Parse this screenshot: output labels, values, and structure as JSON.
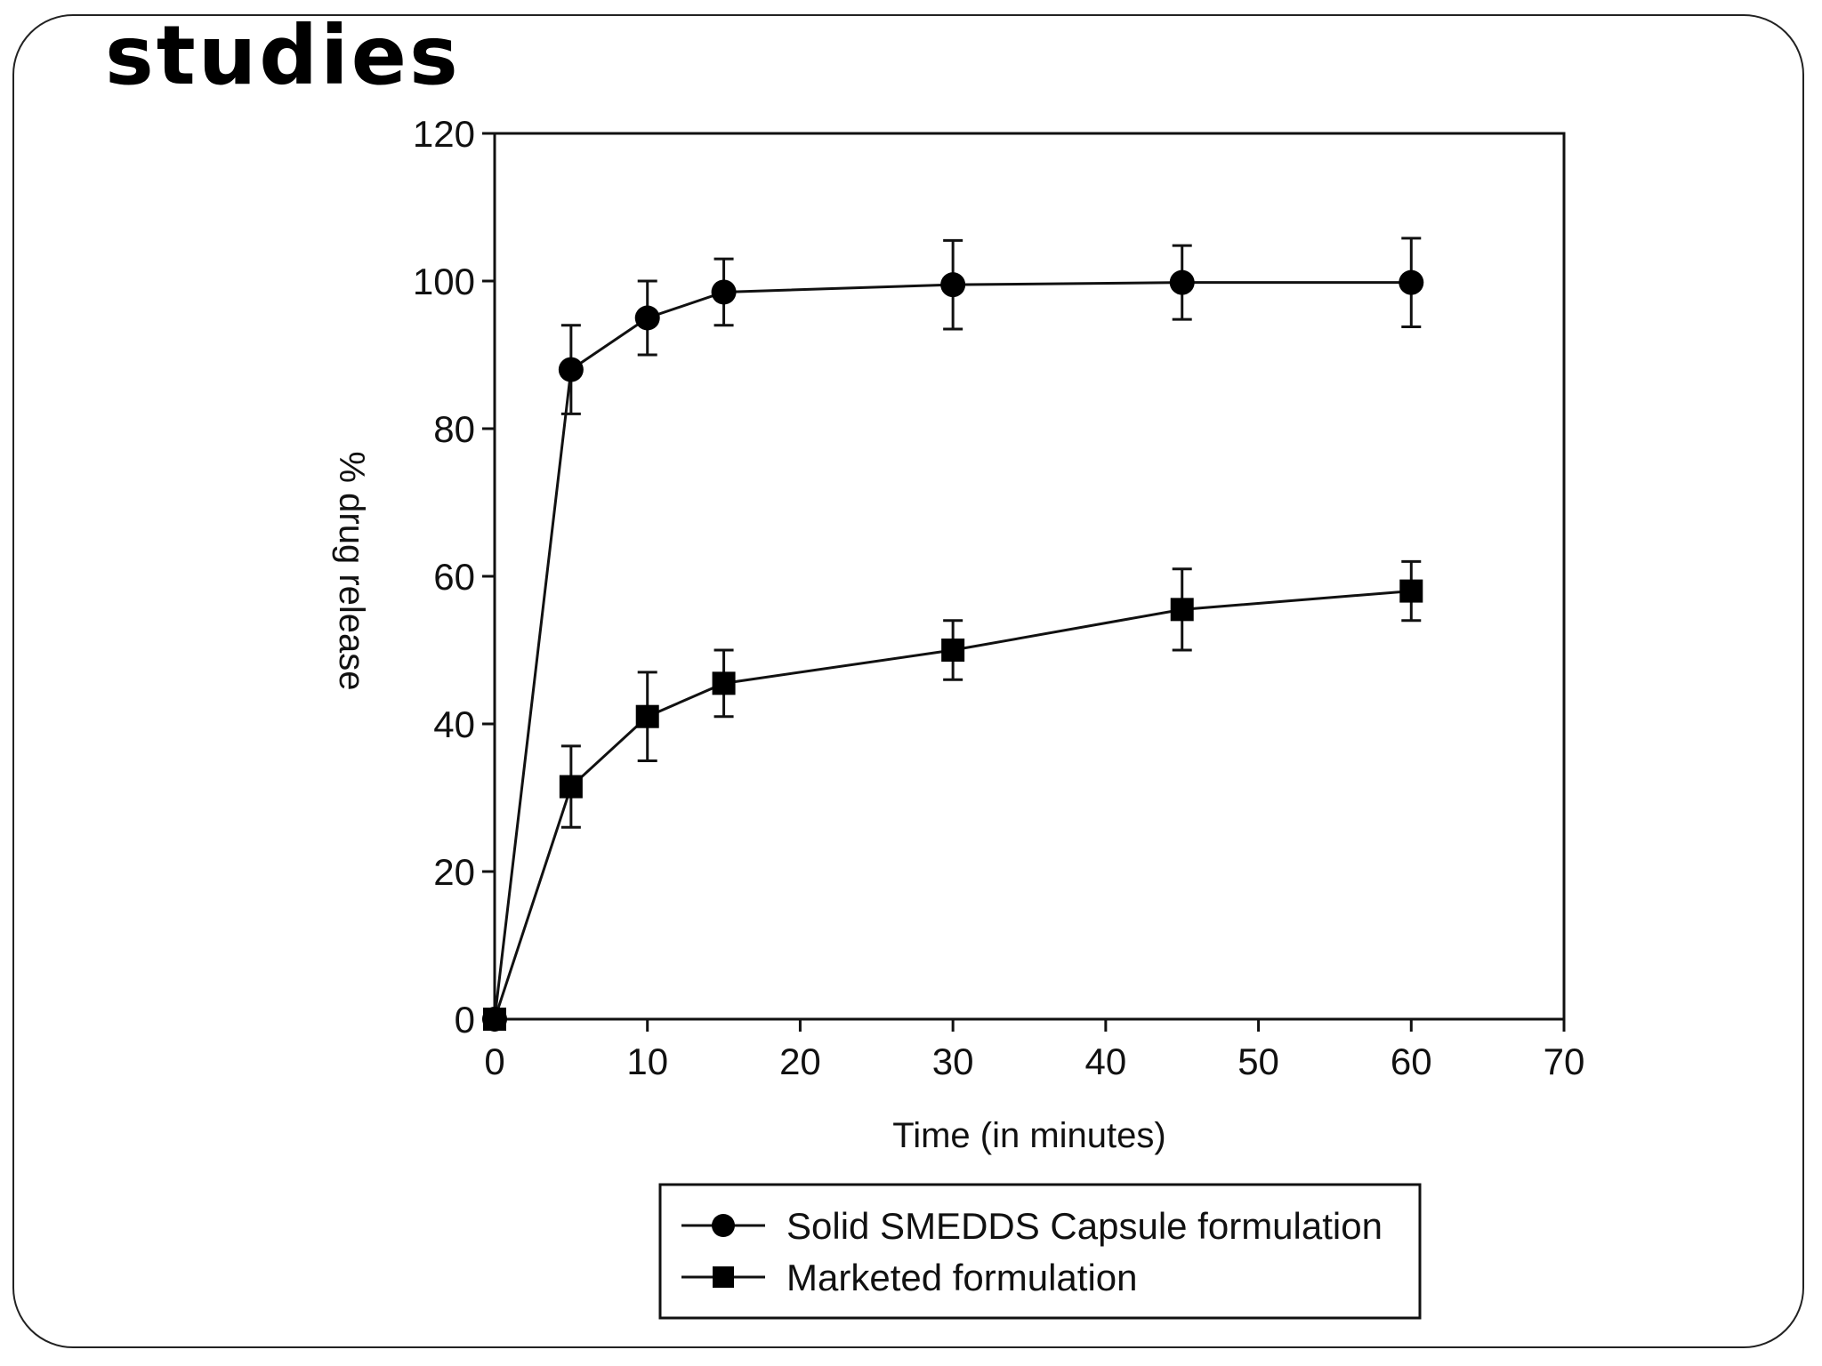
{
  "slide": {
    "title": "studies"
  },
  "colors": {
    "line": "#111111",
    "marker": "#000000",
    "frame": "#222222",
    "background": "#ffffff"
  },
  "chart_data": {
    "type": "line",
    "xlabel": "Time (in minutes)",
    "ylabel": "% drug release",
    "xlim": [
      0,
      70
    ],
    "ylim": [
      0,
      120
    ],
    "x_ticks": [
      0,
      10,
      20,
      30,
      40,
      50,
      60,
      70
    ],
    "y_ticks": [
      0,
      20,
      40,
      60,
      80,
      100,
      120
    ],
    "grid": false,
    "legend_position": "bottom",
    "series": [
      {
        "name": "Solid SMEDDS Capsule formulation",
        "marker": "circle",
        "x": [
          0,
          5,
          10,
          15,
          30,
          45,
          60
        ],
        "y": [
          0,
          88,
          95,
          98.5,
          99.5,
          99.8,
          99.8
        ],
        "error": [
          0,
          6,
          5,
          4.5,
          6,
          5,
          6
        ]
      },
      {
        "name": "Marketed formulation",
        "marker": "square",
        "x": [
          0,
          5,
          10,
          15,
          30,
          45,
          60
        ],
        "y": [
          0,
          31.5,
          41,
          45.5,
          50,
          55.5,
          58
        ],
        "error": [
          0,
          5.5,
          6,
          4.5,
          4,
          5.5,
          4
        ]
      }
    ]
  }
}
